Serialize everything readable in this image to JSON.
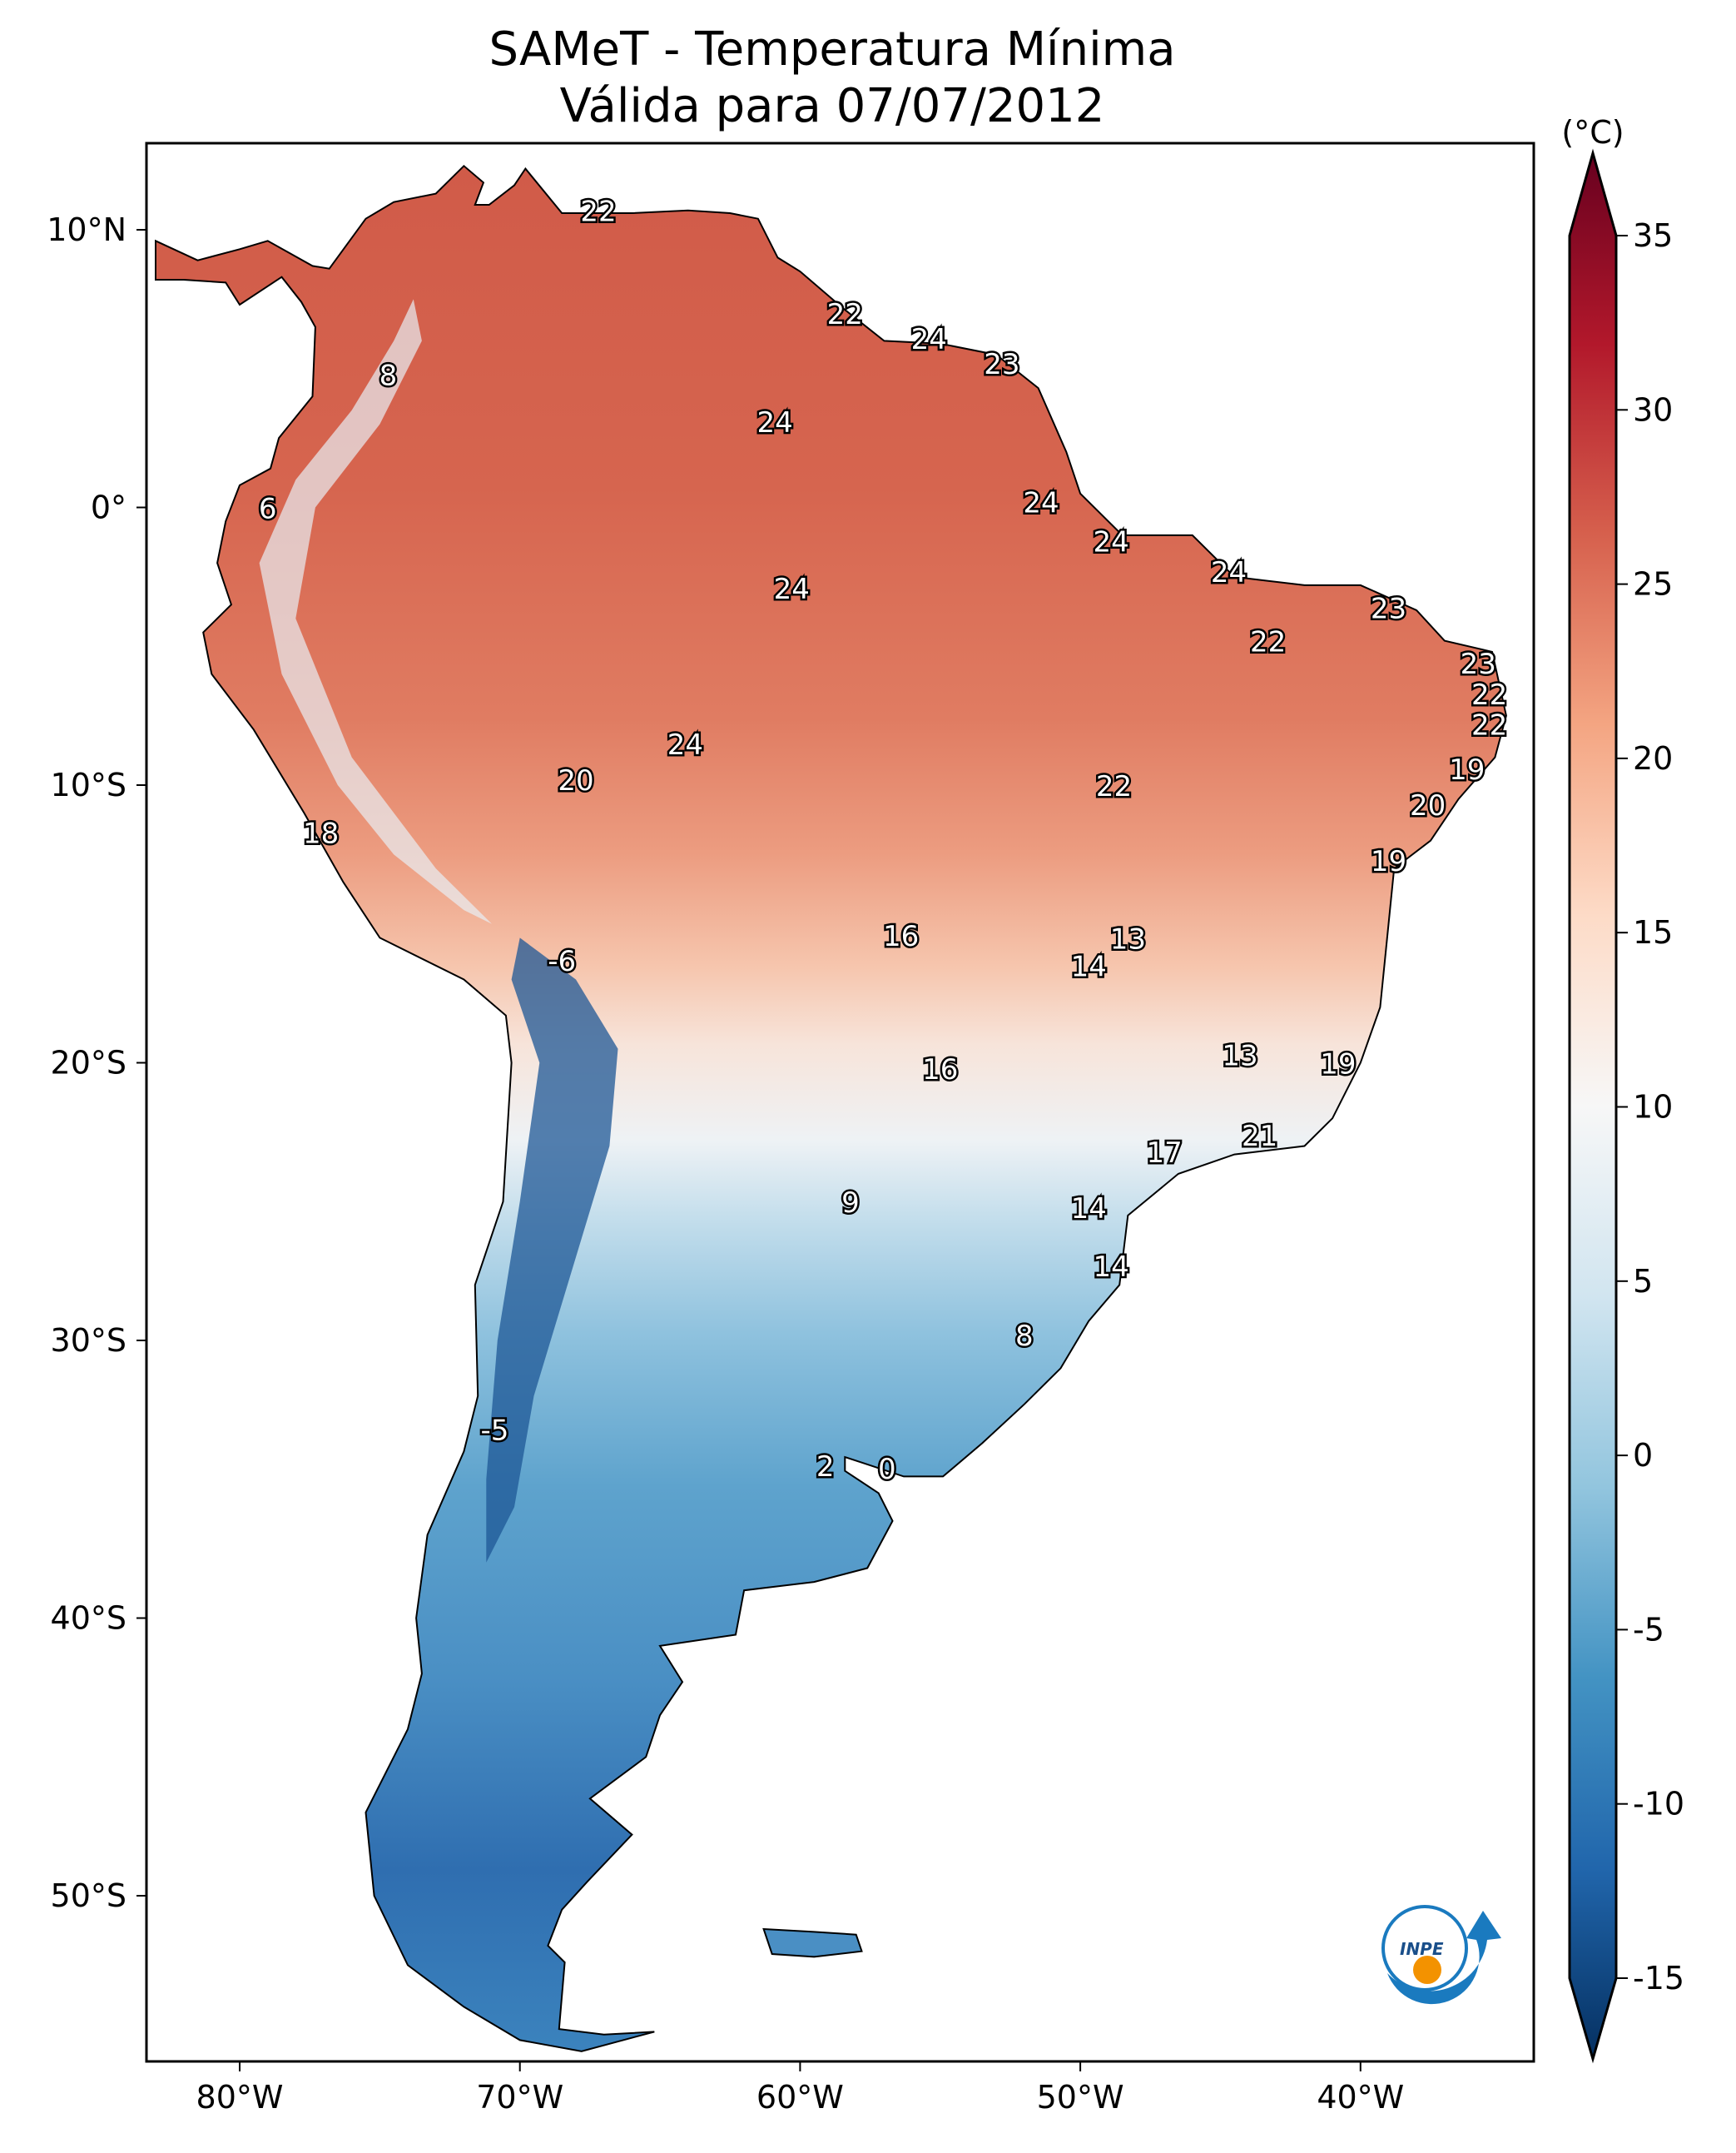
{
  "title": {
    "line1": "SAMeT - Temperatura Mínima",
    "line2": "Válida para 07/07/2012"
  },
  "chart_data": {
    "type": "heatmap",
    "title": "SAMeT - Temperatura Mínima Válida para 07/07/2012",
    "variable": "minimum temperature",
    "units_label": "(°C)",
    "lon_range": [
      -83.3,
      -33.8
    ],
    "lat_range": [
      -56,
      13.1
    ],
    "x_ticks": [
      {
        "value": -80,
        "label": "80°W"
      },
      {
        "value": -70,
        "label": "70°W"
      },
      {
        "value": -60,
        "label": "60°W"
      },
      {
        "value": -50,
        "label": "50°W"
      },
      {
        "value": -40,
        "label": "40°W"
      }
    ],
    "y_ticks": [
      {
        "value": 10,
        "label": "10°N"
      },
      {
        "value": 0,
        "label": "0°"
      },
      {
        "value": -10,
        "label": "10°S"
      },
      {
        "value": -20,
        "label": "20°S"
      },
      {
        "value": -30,
        "label": "30°S"
      },
      {
        "value": -40,
        "label": "40°S"
      },
      {
        "value": -50,
        "label": "50°S"
      }
    ],
    "colorbar": {
      "range": [
        -15,
        35
      ],
      "extend": "both",
      "colormap": "RdBu_r",
      "ticks": [
        {
          "value": 35,
          "label": "35"
        },
        {
          "value": 30,
          "label": "30"
        },
        {
          "value": 25,
          "label": "25"
        },
        {
          "value": 20,
          "label": "20"
        },
        {
          "value": 15,
          "label": "15"
        },
        {
          "value": 10,
          "label": "10"
        },
        {
          "value": 5,
          "label": "5"
        },
        {
          "value": 0,
          "label": "0"
        },
        {
          "value": -5,
          "label": "-5"
        },
        {
          "value": -10,
          "label": "-10"
        },
        {
          "value": -15,
          "label": "-15"
        }
      ]
    },
    "station_labels": [
      {
        "lon": -67.2,
        "lat": 10.6,
        "value": "22"
      },
      {
        "lon": -74.7,
        "lat": 4.7,
        "value": "8"
      },
      {
        "lon": -58.4,
        "lat": 6.9,
        "value": "22"
      },
      {
        "lon": -55.4,
        "lat": 6.0,
        "value": "24"
      },
      {
        "lon": -52.8,
        "lat": 5.1,
        "value": "23"
      },
      {
        "lon": -60.9,
        "lat": 3.0,
        "value": "24"
      },
      {
        "lon": -79.0,
        "lat": -0.1,
        "value": "6"
      },
      {
        "lon": -51.4,
        "lat": 0.1,
        "value": "24"
      },
      {
        "lon": -48.9,
        "lat": -1.3,
        "value": "24"
      },
      {
        "lon": -60.3,
        "lat": -3.0,
        "value": "24"
      },
      {
        "lon": -44.7,
        "lat": -2.4,
        "value": "24"
      },
      {
        "lon": -39.0,
        "lat": -3.7,
        "value": "23"
      },
      {
        "lon": -43.3,
        "lat": -4.9,
        "value": "22"
      },
      {
        "lon": -35.8,
        "lat": -5.7,
        "value": "23"
      },
      {
        "lon": -35.4,
        "lat": -6.8,
        "value": "22"
      },
      {
        "lon": -35.4,
        "lat": -7.9,
        "value": "22"
      },
      {
        "lon": -64.1,
        "lat": -8.6,
        "value": "24"
      },
      {
        "lon": -68.0,
        "lat": -9.9,
        "value": "20"
      },
      {
        "lon": -48.8,
        "lat": -10.1,
        "value": "22"
      },
      {
        "lon": -36.2,
        "lat": -9.5,
        "value": "19"
      },
      {
        "lon": -37.6,
        "lat": -10.8,
        "value": "20"
      },
      {
        "lon": -77.1,
        "lat": -11.8,
        "value": "18"
      },
      {
        "lon": -39.0,
        "lat": -12.8,
        "value": "19"
      },
      {
        "lon": -56.4,
        "lat": -15.5,
        "value": "16"
      },
      {
        "lon": -48.3,
        "lat": -15.6,
        "value": "13"
      },
      {
        "lon": -49.7,
        "lat": -16.6,
        "value": "14"
      },
      {
        "lon": -68.5,
        "lat": -16.4,
        "value": "-6"
      },
      {
        "lon": -55.0,
        "lat": -20.3,
        "value": "16"
      },
      {
        "lon": -44.3,
        "lat": -19.8,
        "value": "13"
      },
      {
        "lon": -40.8,
        "lat": -20.1,
        "value": "19"
      },
      {
        "lon": -43.6,
        "lat": -22.7,
        "value": "21"
      },
      {
        "lon": -47.0,
        "lat": -23.3,
        "value": "17"
      },
      {
        "lon": -58.2,
        "lat": -25.1,
        "value": "9"
      },
      {
        "lon": -49.7,
        "lat": -25.3,
        "value": "14"
      },
      {
        "lon": -48.9,
        "lat": -27.4,
        "value": "14"
      },
      {
        "lon": -52.0,
        "lat": -29.9,
        "value": "8"
      },
      {
        "lon": -70.9,
        "lat": -33.3,
        "value": "-5"
      },
      {
        "lon": -59.1,
        "lat": -34.6,
        "value": "2"
      },
      {
        "lon": -56.9,
        "lat": -34.7,
        "value": "0"
      }
    ]
  },
  "logo": {
    "text": "INPE",
    "colors": {
      "blue": "#1a7abf",
      "orange": "#f39200"
    }
  }
}
